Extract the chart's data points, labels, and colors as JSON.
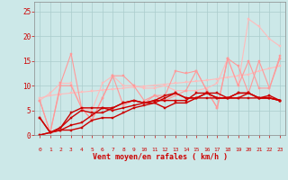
{
  "bg_color": "#cce8e8",
  "grid_color": "#aacccc",
  "xlabel": "Vent moyen/en rafales ( km/h )",
  "xlabel_color": "#cc0000",
  "tick_color": "#cc0000",
  "ylim": [
    0,
    27
  ],
  "xlim": [
    -0.5,
    23.5
  ],
  "series": [
    {
      "color": "#ffbbbb",
      "linewidth": 0.8,
      "marker": "s",
      "markersize": 1.5,
      "y": [
        7.5,
        8.0,
        8.3,
        8.5,
        8.7,
        8.9,
        9.1,
        9.3,
        9.5,
        9.7,
        9.9,
        10.1,
        10.3,
        10.5,
        10.7,
        10.9,
        11.1,
        11.4,
        11.7,
        12.0,
        12.3,
        13.0,
        13.5,
        14.0
      ]
    },
    {
      "color": "#ffbbbb",
      "linewidth": 0.8,
      "marker": "s",
      "markersize": 1.5,
      "y": [
        7.0,
        8.5,
        10.5,
        10.5,
        5.5,
        5.0,
        10.5,
        12.0,
        10.0,
        10.0,
        9.5,
        9.5,
        10.0,
        9.0,
        9.0,
        9.0,
        9.5,
        10.5,
        15.5,
        10.0,
        23.5,
        22.0,
        19.5,
        18.0
      ]
    },
    {
      "color": "#ff9999",
      "linewidth": 0.8,
      "marker": "s",
      "markersize": 1.5,
      "y": [
        7.0,
        0.5,
        10.0,
        10.0,
        5.5,
        3.0,
        7.5,
        12.0,
        6.0,
        7.0,
        6.5,
        8.0,
        7.0,
        8.0,
        9.0,
        13.0,
        9.0,
        5.5,
        15.5,
        10.0,
        15.0,
        9.5,
        9.5,
        15.5
      ]
    },
    {
      "color": "#ff9999",
      "linewidth": 0.8,
      "marker": "s",
      "markersize": 1.5,
      "y": [
        7.0,
        0.5,
        10.5,
        16.5,
        5.5,
        3.0,
        7.5,
        12.0,
        12.0,
        10.0,
        7.0,
        8.0,
        8.0,
        13.0,
        12.5,
        13.0,
        9.0,
        5.5,
        15.5,
        14.0,
        8.5,
        15.0,
        9.5,
        16.0
      ]
    },
    {
      "color": "#cc0000",
      "linewidth": 1.0,
      "marker": "s",
      "markersize": 1.5,
      "y": [
        3.5,
        0.5,
        1.0,
        1.0,
        1.5,
        3.0,
        3.5,
        3.5,
        4.5,
        5.5,
        6.0,
        6.5,
        5.5,
        6.5,
        6.5,
        7.5,
        8.5,
        7.5,
        7.5,
        7.5,
        7.5,
        7.5,
        7.5,
        7.0
      ]
    },
    {
      "color": "#cc0000",
      "linewidth": 1.0,
      "marker": "s",
      "markersize": 1.5,
      "y": [
        3.5,
        0.5,
        1.0,
        2.0,
        2.5,
        4.0,
        5.5,
        5.0,
        5.5,
        6.0,
        6.5,
        7.0,
        7.0,
        7.0,
        7.0,
        8.5,
        8.5,
        8.5,
        7.5,
        7.5,
        8.5,
        7.5,
        8.0,
        7.0
      ]
    },
    {
      "color": "#cc0000",
      "linewidth": 1.0,
      "marker": "s",
      "markersize": 1.5,
      "y": [
        0.0,
        0.5,
        1.5,
        3.5,
        5.0,
        4.5,
        4.5,
        5.5,
        6.5,
        7.0,
        6.5,
        6.5,
        7.5,
        8.5,
        7.5,
        7.5,
        7.5,
        7.5,
        7.5,
        8.5,
        8.5,
        7.5,
        7.5,
        7.0
      ]
    },
    {
      "color": "#cc0000",
      "linewidth": 1.0,
      "marker": "s",
      "markersize": 1.5,
      "y": [
        0.0,
        0.5,
        1.5,
        4.5,
        5.5,
        5.5,
        5.5,
        5.5,
        6.5,
        7.0,
        6.5,
        7.0,
        8.0,
        8.5,
        7.5,
        7.5,
        8.5,
        7.5,
        7.5,
        8.5,
        8.5,
        7.5,
        7.5,
        7.0
      ]
    }
  ],
  "wind_arrows": [
    " ",
    "←",
    "↗",
    "←",
    "↑",
    "←",
    "←",
    "↗",
    "↙",
    "→",
    "↙",
    "→",
    "→",
    "↙",
    "→",
    "↗",
    "↗",
    "↗",
    "↗",
    "↗",
    "↙",
    "↙",
    "←",
    "←"
  ],
  "x_ticks": [
    0,
    1,
    2,
    3,
    4,
    5,
    6,
    7,
    8,
    9,
    10,
    11,
    12,
    13,
    14,
    15,
    16,
    17,
    18,
    19,
    20,
    21,
    22,
    23
  ],
  "y_ticks": [
    0,
    5,
    10,
    15,
    20,
    25
  ]
}
